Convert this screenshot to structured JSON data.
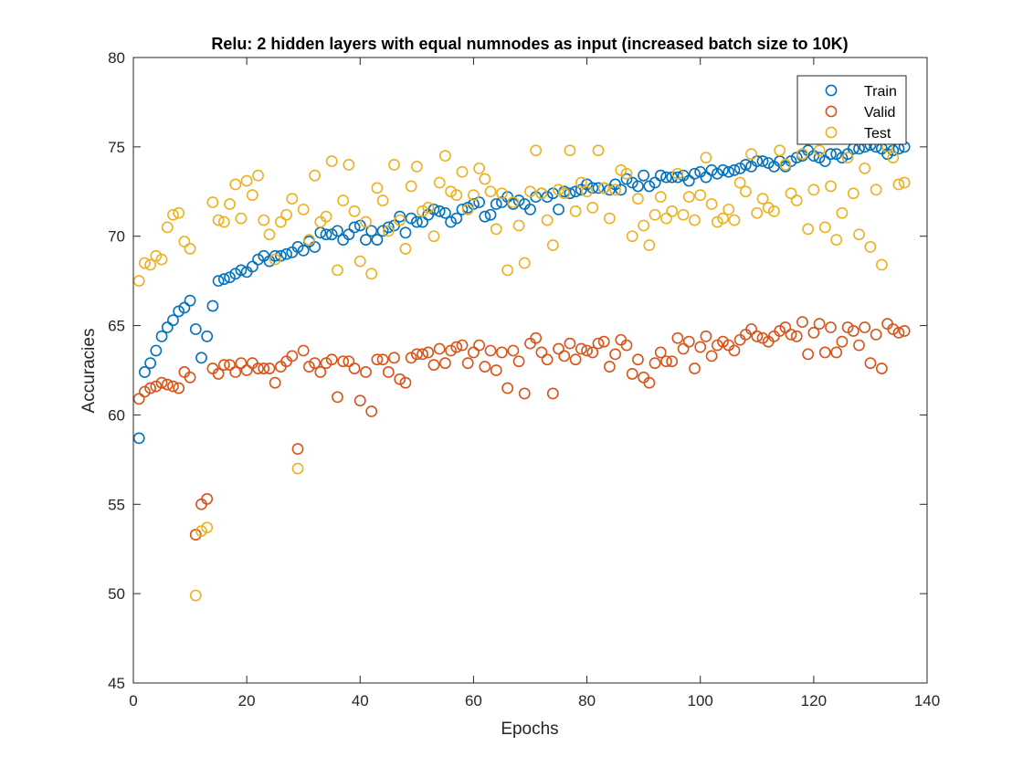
{
  "chart_data": {
    "type": "scatter",
    "title": "Relu: 2 hidden layers with equal numnodes as input (increased batch size to 10K)",
    "xlabel": "Epochs",
    "ylabel": "Accuracies",
    "xlim": [
      0,
      140
    ],
    "ylim": [
      45,
      80
    ],
    "xticks": [
      0,
      20,
      40,
      60,
      80,
      100,
      120,
      140
    ],
    "yticks": [
      45,
      50,
      55,
      60,
      65,
      70,
      75,
      80
    ],
    "grid": false,
    "legend_position": "top-right",
    "marker": "open-circle",
    "series": [
      {
        "name": "Train",
        "color": "#0072BD",
        "x": [
          1,
          2,
          3,
          4,
          5,
          6,
          7,
          8,
          9,
          10,
          11,
          12,
          13,
          14,
          15,
          16,
          17,
          18,
          19,
          20,
          21,
          22,
          23,
          24,
          25,
          26,
          27,
          28,
          29,
          30,
          31,
          32,
          33,
          34,
          35,
          36,
          37,
          38,
          39,
          40,
          41,
          42,
          43,
          44,
          45,
          46,
          47,
          48,
          49,
          50,
          51,
          52,
          53,
          54,
          55,
          56,
          57,
          58,
          59,
          60,
          61,
          62,
          63,
          64,
          65,
          66,
          67,
          68,
          69,
          70,
          71,
          72,
          73,
          74,
          75,
          76,
          77,
          78,
          79,
          80,
          81,
          82,
          83,
          84,
          85,
          86,
          87,
          88,
          89,
          90,
          91,
          92,
          93,
          94,
          95,
          96,
          97,
          98,
          99,
          100,
          101,
          102,
          103,
          104,
          105,
          106,
          107,
          108,
          109,
          110,
          111,
          112,
          113,
          114,
          115,
          116,
          117,
          118,
          119,
          120,
          121,
          122,
          123,
          124,
          125,
          126,
          127,
          128,
          129,
          130,
          131,
          132,
          133,
          134,
          135,
          136
        ],
        "y": [
          58.7,
          62.4,
          62.9,
          63.6,
          64.4,
          64.9,
          65.3,
          65.8,
          66.0,
          66.4,
          64.8,
          63.2,
          64.4,
          66.1,
          67.5,
          67.6,
          67.7,
          67.9,
          68.1,
          68.0,
          68.3,
          68.7,
          68.9,
          68.6,
          68.9,
          68.9,
          69.0,
          69.1,
          69.4,
          69.2,
          69.7,
          69.4,
          70.2,
          70.1,
          70.1,
          70.3,
          69.8,
          70.1,
          70.5,
          70.6,
          69.8,
          70.3,
          69.8,
          70.3,
          70.5,
          70.6,
          71.1,
          70.2,
          71.0,
          70.8,
          70.8,
          71.2,
          71.5,
          71.4,
          71.3,
          70.8,
          71.0,
          71.5,
          71.6,
          71.8,
          71.9,
          71.1,
          71.2,
          71.8,
          71.9,
          72.2,
          71.8,
          72.0,
          71.8,
          71.5,
          72.2,
          72.4,
          72.2,
          72.4,
          71.5,
          72.5,
          72.4,
          72.5,
          72.6,
          72.9,
          72.7,
          72.7,
          72.7,
          72.6,
          72.9,
          72.6,
          73.2,
          73.0,
          72.8,
          73.4,
          72.8,
          73.0,
          73.4,
          73.3,
          73.3,
          73.3,
          73.4,
          73.1,
          73.5,
          73.6,
          73.3,
          73.7,
          73.5,
          73.7,
          73.6,
          73.7,
          73.8,
          74.0,
          73.9,
          74.2,
          74.2,
          74.1,
          73.9,
          74.2,
          73.9,
          74.2,
          74.4,
          74.5,
          74.8,
          74.5,
          74.4,
          74.2,
          74.6,
          74.6,
          74.4,
          74.6,
          74.9,
          74.9,
          75.0,
          75.1,
          75.0,
          74.9,
          74.6,
          74.8,
          74.9,
          75.0
        ]
      },
      {
        "name": "Valid",
        "color": "#D95319",
        "x": [
          1,
          2,
          3,
          4,
          5,
          6,
          7,
          8,
          9,
          10,
          11,
          12,
          13,
          14,
          15,
          16,
          17,
          18,
          19,
          20,
          21,
          22,
          23,
          24,
          25,
          26,
          27,
          28,
          29,
          30,
          31,
          32,
          33,
          34,
          35,
          36,
          37,
          38,
          39,
          40,
          41,
          42,
          43,
          44,
          45,
          46,
          47,
          48,
          49,
          50,
          51,
          52,
          53,
          54,
          55,
          56,
          57,
          58,
          59,
          60,
          61,
          62,
          63,
          64,
          65,
          66,
          67,
          68,
          69,
          70,
          71,
          72,
          73,
          74,
          75,
          76,
          77,
          78,
          79,
          80,
          81,
          82,
          83,
          84,
          85,
          86,
          87,
          88,
          89,
          90,
          91,
          92,
          93,
          94,
          95,
          96,
          97,
          98,
          99,
          100,
          101,
          102,
          103,
          104,
          105,
          106,
          107,
          108,
          109,
          110,
          111,
          112,
          113,
          114,
          115,
          116,
          117,
          118,
          119,
          120,
          121,
          122,
          123,
          124,
          125,
          126,
          127,
          128,
          129,
          130,
          131,
          132,
          133,
          134,
          135,
          136
        ],
        "y": [
          60.9,
          61.3,
          61.5,
          61.6,
          61.8,
          61.7,
          61.6,
          61.5,
          62.4,
          62.1,
          53.3,
          55.0,
          55.3,
          62.6,
          62.3,
          62.8,
          62.8,
          62.4,
          62.9,
          62.5,
          62.9,
          62.6,
          62.6,
          62.6,
          61.8,
          62.7,
          63.0,
          63.3,
          58.1,
          63.6,
          62.7,
          62.9,
          62.4,
          62.9,
          63.1,
          61.0,
          63.0,
          63.0,
          62.6,
          60.8,
          62.4,
          60.2,
          63.1,
          63.1,
          62.4,
          63.2,
          62.0,
          61.8,
          63.2,
          63.4,
          63.4,
          63.5,
          62.8,
          63.7,
          62.9,
          63.6,
          63.8,
          63.9,
          62.9,
          63.5,
          63.9,
          62.7,
          63.6,
          62.5,
          63.5,
          61.5,
          63.6,
          63.0,
          61.2,
          64.0,
          64.3,
          63.5,
          63.1,
          61.2,
          63.7,
          63.3,
          64.0,
          63.1,
          63.7,
          63.6,
          63.5,
          64.0,
          64.1,
          62.7,
          63.4,
          64.2,
          63.9,
          62.3,
          63.1,
          62.1,
          61.8,
          62.9,
          63.5,
          63.0,
          63.0,
          64.3,
          63.7,
          64.1,
          62.6,
          63.8,
          64.4,
          63.3,
          63.9,
          64.1,
          63.9,
          63.6,
          64.2,
          64.5,
          64.8,
          64.4,
          64.3,
          64.1,
          64.4,
          64.7,
          64.9,
          64.5,
          64.4,
          65.2,
          63.4,
          64.6,
          65.1,
          63.5,
          64.9,
          63.5,
          64.1,
          64.9,
          64.7,
          63.9,
          64.9,
          62.9,
          64.5,
          62.6,
          65.1,
          64.8,
          64.6,
          64.7
        ]
      },
      {
        "name": "Test",
        "color": "#EDB120",
        "x": [
          1,
          2,
          3,
          4,
          5,
          6,
          7,
          8,
          9,
          10,
          11,
          12,
          13,
          14,
          15,
          16,
          17,
          18,
          19,
          20,
          21,
          22,
          23,
          24,
          25,
          26,
          27,
          28,
          29,
          30,
          31,
          32,
          33,
          34,
          35,
          36,
          37,
          38,
          39,
          40,
          41,
          42,
          43,
          44,
          45,
          46,
          47,
          48,
          49,
          50,
          51,
          52,
          53,
          54,
          55,
          56,
          57,
          58,
          59,
          60,
          61,
          62,
          63,
          64,
          65,
          66,
          67,
          68,
          69,
          70,
          71,
          72,
          73,
          74,
          75,
          76,
          77,
          78,
          79,
          80,
          81,
          82,
          83,
          84,
          85,
          86,
          87,
          88,
          89,
          90,
          91,
          92,
          93,
          94,
          95,
          96,
          97,
          98,
          99,
          100,
          101,
          102,
          103,
          104,
          105,
          106,
          107,
          108,
          109,
          110,
          111,
          112,
          113,
          114,
          115,
          116,
          117,
          118,
          119,
          120,
          121,
          122,
          123,
          124,
          125,
          126,
          127,
          128,
          129,
          130,
          131,
          132,
          133,
          134,
          135,
          136
        ],
        "y": [
          67.5,
          68.5,
          68.4,
          68.9,
          68.7,
          70.5,
          71.2,
          71.3,
          69.7,
          69.3,
          49.9,
          53.5,
          53.7,
          71.9,
          70.9,
          70.8,
          71.8,
          72.9,
          71.0,
          73.1,
          72.3,
          73.4,
          70.9,
          70.1,
          68.7,
          70.8,
          71.2,
          72.1,
          57.0,
          71.5,
          69.8,
          73.4,
          70.8,
          71.1,
          74.2,
          68.1,
          72.0,
          74.0,
          71.4,
          68.6,
          70.8,
          67.9,
          72.7,
          72.0,
          70.3,
          74.0,
          70.9,
          69.3,
          72.8,
          73.9,
          71.4,
          71.6,
          70.0,
          73.0,
          74.5,
          72.5,
          72.3,
          73.6,
          71.5,
          72.3,
          73.8,
          73.2,
          72.5,
          70.4,
          72.4,
          68.1,
          71.9,
          70.6,
          68.5,
          72.5,
          74.8,
          72.4,
          70.9,
          69.5,
          72.6,
          72.4,
          74.8,
          71.4,
          73.0,
          72.5,
          71.6,
          74.8,
          72.7,
          71.0,
          72.6,
          73.7,
          73.5,
          70.0,
          72.1,
          70.6,
          69.5,
          71.2,
          72.2,
          71.0,
          71.4,
          73.5,
          71.2,
          72.2,
          70.9,
          72.3,
          74.4,
          71.8,
          70.8,
          71.0,
          71.5,
          70.9,
          73.0,
          72.5,
          74.6,
          71.3,
          72.1,
          71.6,
          71.4,
          74.8,
          74.0,
          72.4,
          72.0,
          74.6,
          70.4,
          72.6,
          74.8,
          70.5,
          72.8,
          69.8,
          71.3,
          74.4,
          72.4,
          70.1,
          73.8,
          69.4,
          72.6,
          68.4,
          75.0,
          74.4,
          72.9,
          73.0
        ]
      }
    ]
  }
}
